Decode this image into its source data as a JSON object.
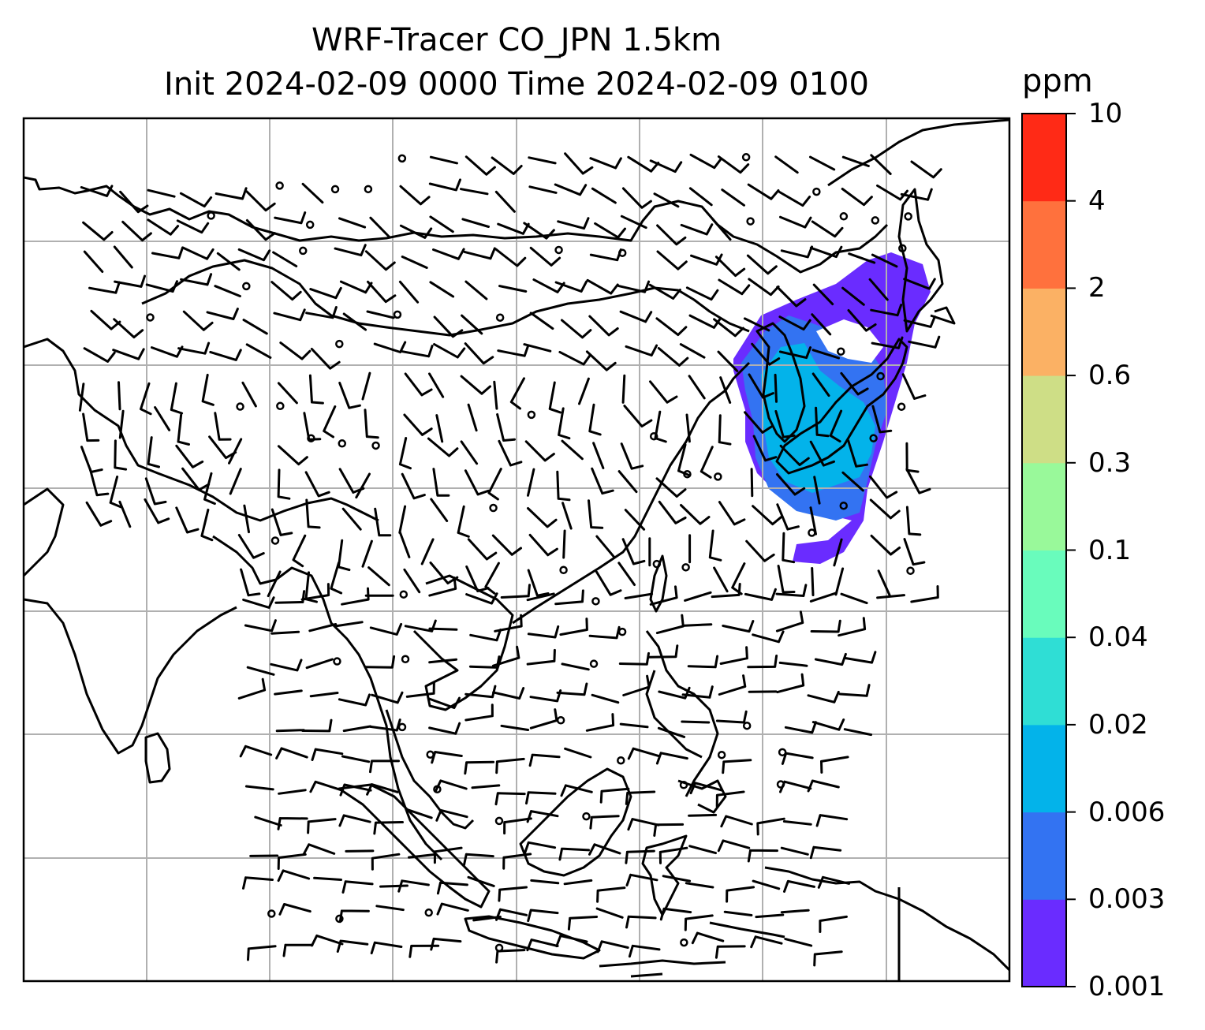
{
  "title_line1": "WRF-Tracer CO_JPN 1.5km",
  "title_line2": "Init 2024-02-09 0000 Time 2024-02-09 0100",
  "colorbar": {
    "unit": "ppm",
    "levels": [
      "0.001",
      "0.003",
      "0.006",
      "0.02",
      "0.04",
      "0.1",
      "0.3",
      "0.6",
      "2",
      "4",
      "10"
    ],
    "colors": [
      "#6a2cff",
      "#3373f2",
      "#03b3ea",
      "#2fded5",
      "#69fcbc",
      "#99f99a",
      "#cede86",
      "#fbb164",
      "#ff713d",
      "#ff2a16"
    ]
  },
  "styles": {
    "frame_color": "#000000",
    "grid_color": "#b0b0b0",
    "coastline_color": "#000000",
    "wind_barb_color": "#000000",
    "plume_low_color": "#6a2cff",
    "plume_mid_color": "#3373f2",
    "plume_high_color": "#03b3ea"
  }
}
